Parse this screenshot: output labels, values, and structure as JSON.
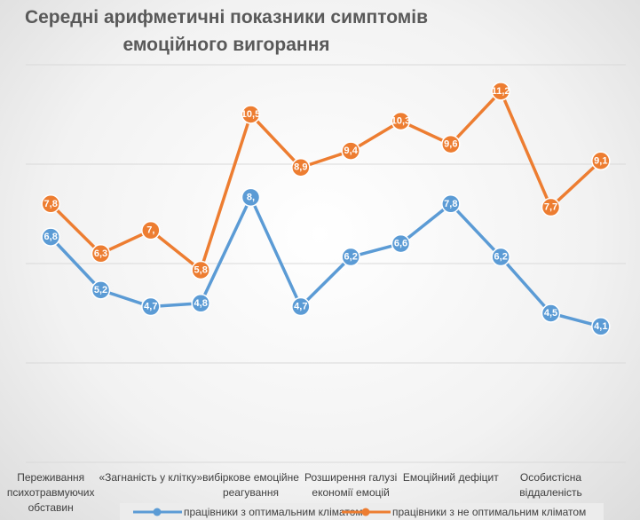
{
  "chart_data": {
    "type": "line",
    "title": "Середні арифметичні показники симптомів емоційного вигорання",
    "categories": [
      "Переживання психотравмуючих обставин",
      null,
      "«Загнаність у клітку»",
      null,
      "вибіркове емоційне реагування",
      null,
      "Розширення галузі економії емоцій",
      null,
      "Емоційний дефіцит",
      null,
      "Особистісна віддаленість",
      null
    ],
    "series": [
      {
        "name": "працівники з оптимальним кліматом",
        "color": "#5b9bd5",
        "values": [
          6.8,
          5.2,
          4.7,
          4.8,
          8,
          4.7,
          6.2,
          6.6,
          7.8,
          6.2,
          4.5,
          4.1
        ],
        "value_labels": [
          "6,8",
          "5,2",
          "4,7",
          "4,8",
          "8,",
          "4,7",
          "6,2",
          "6,6",
          "7,8",
          "6,2",
          "4,5",
          "4,1"
        ]
      },
      {
        "name": "працівники з не оптимальним кліматом",
        "color": "#ed7d31",
        "values": [
          7.8,
          6.3,
          7,
          5.8,
          10.5,
          8.9,
          9.4,
          10.3,
          9.6,
          11.2,
          7.7,
          9.1
        ],
        "value_labels": [
          "7,8",
          "6,3",
          "7,",
          "5,8",
          "10,5",
          "8,9",
          "9,4",
          "10,3",
          "9,6",
          "11,2",
          "7,7",
          "9,1"
        ]
      }
    ],
    "ylim": [
      0,
      12
    ],
    "yticks": [
      0,
      3,
      6,
      9,
      12
    ],
    "grid": true,
    "legend": "bottom"
  }
}
